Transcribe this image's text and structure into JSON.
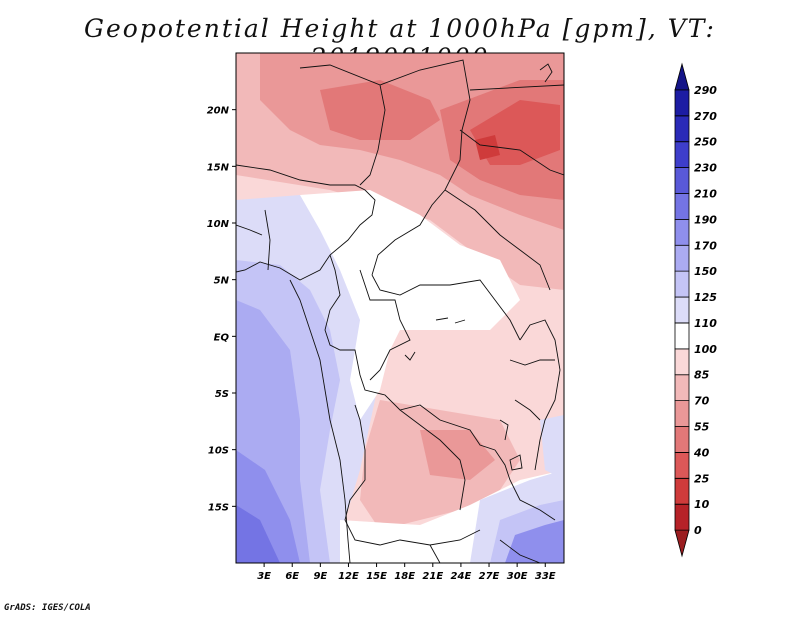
{
  "title": "Geopotential Height at 1000hPa [gpm], VT: 2019081000",
  "credit": "GrADS: IGES/COLA",
  "map": {
    "lon_range": [
      0,
      35
    ],
    "lat_range": [
      -20,
      25
    ],
    "x_ticks": [
      "3E",
      "6E",
      "9E",
      "12E",
      "15E",
      "18E",
      "21E",
      "24E",
      "27E",
      "30E",
      "33E"
    ],
    "y_ticks": [
      "20N",
      "15N",
      "10N",
      "5N",
      "EQ",
      "5S",
      "10S",
      "15S"
    ],
    "field_units": "gpm"
  },
  "colorbar": {
    "levels": [
      "0",
      "10",
      "25",
      "40",
      "55",
      "70",
      "85",
      "100",
      "110",
      "125",
      "150",
      "170",
      "190",
      "210",
      "230",
      "250",
      "270",
      "290"
    ],
    "colors": [
      "#9b1d20",
      "#b62228",
      "#cf3b3b",
      "#dc5858",
      "#e27878",
      "#ea9898",
      "#f2b9b9",
      "#fad8d8",
      "#ffffff",
      "#dcdcf8",
      "#c4c4f6",
      "#ababf2",
      "#8f8fed",
      "#7474e4",
      "#5959d8",
      "#3e3ecb",
      "#2a2ab8",
      "#1c1ca3",
      "#141488"
    ]
  }
}
